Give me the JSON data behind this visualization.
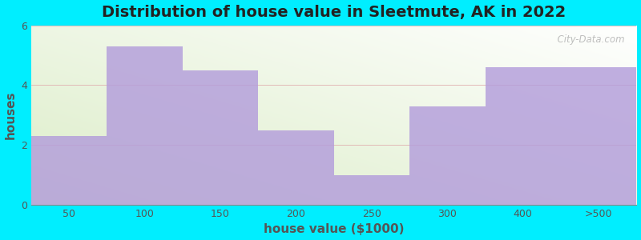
{
  "title": "Distribution of house value in Sleetmute, AK in 2022",
  "xlabel": "house value ($1000)",
  "ylabel": "houses",
  "categories": [
    "50",
    "100",
    "150",
    "200",
    "250",
    "300",
    "400",
    ">500"
  ],
  "values": [
    2.3,
    5.3,
    4.5,
    2.5,
    1.0,
    3.3,
    4.6,
    4.6
  ],
  "bar_color": "#b39ddb",
  "ylim": [
    0,
    6
  ],
  "yticks": [
    0,
    2,
    4,
    6
  ],
  "outer_bg": "#00eeff",
  "title_fontsize": 14,
  "axis_label_fontsize": 11,
  "tick_fontsize": 9,
  "watermark": "  City-Data.com"
}
